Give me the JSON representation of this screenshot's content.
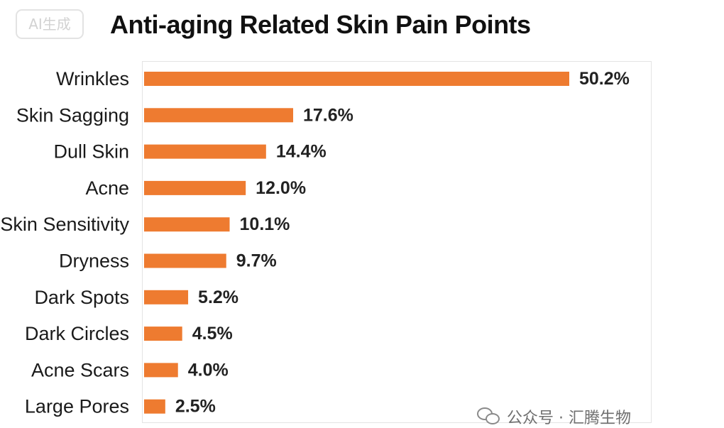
{
  "badge": "AI生成",
  "chart_data": {
    "type": "bar",
    "orientation": "horizontal",
    "title": "Anti-aging Related Skin Pain Points",
    "categories": [
      "Wrinkles",
      "Skin Sagging",
      "Dull Skin",
      "Acne",
      "Skin Sensitivity",
      "Dryness",
      "Dark Spots",
      "Dark Circles",
      "Acne Scars",
      "Large Pores"
    ],
    "values": [
      50.2,
      17.6,
      14.4,
      12.0,
      10.1,
      9.7,
      5.2,
      4.5,
      4.0,
      2.5
    ],
    "value_labels": [
      "50.2%",
      "17.6%",
      "14.4%",
      "12.0%",
      "10.1%",
      "9.7%",
      "5.2%",
      "4.5%",
      "4.0%",
      "2.5%"
    ],
    "xlabel": "",
    "ylabel": "",
    "grid": false,
    "legend": "none",
    "bar_color": "#ee7b30"
  },
  "watermark": {
    "icon": "wechat-icon",
    "text": "公众号 · 汇腾生物"
  }
}
